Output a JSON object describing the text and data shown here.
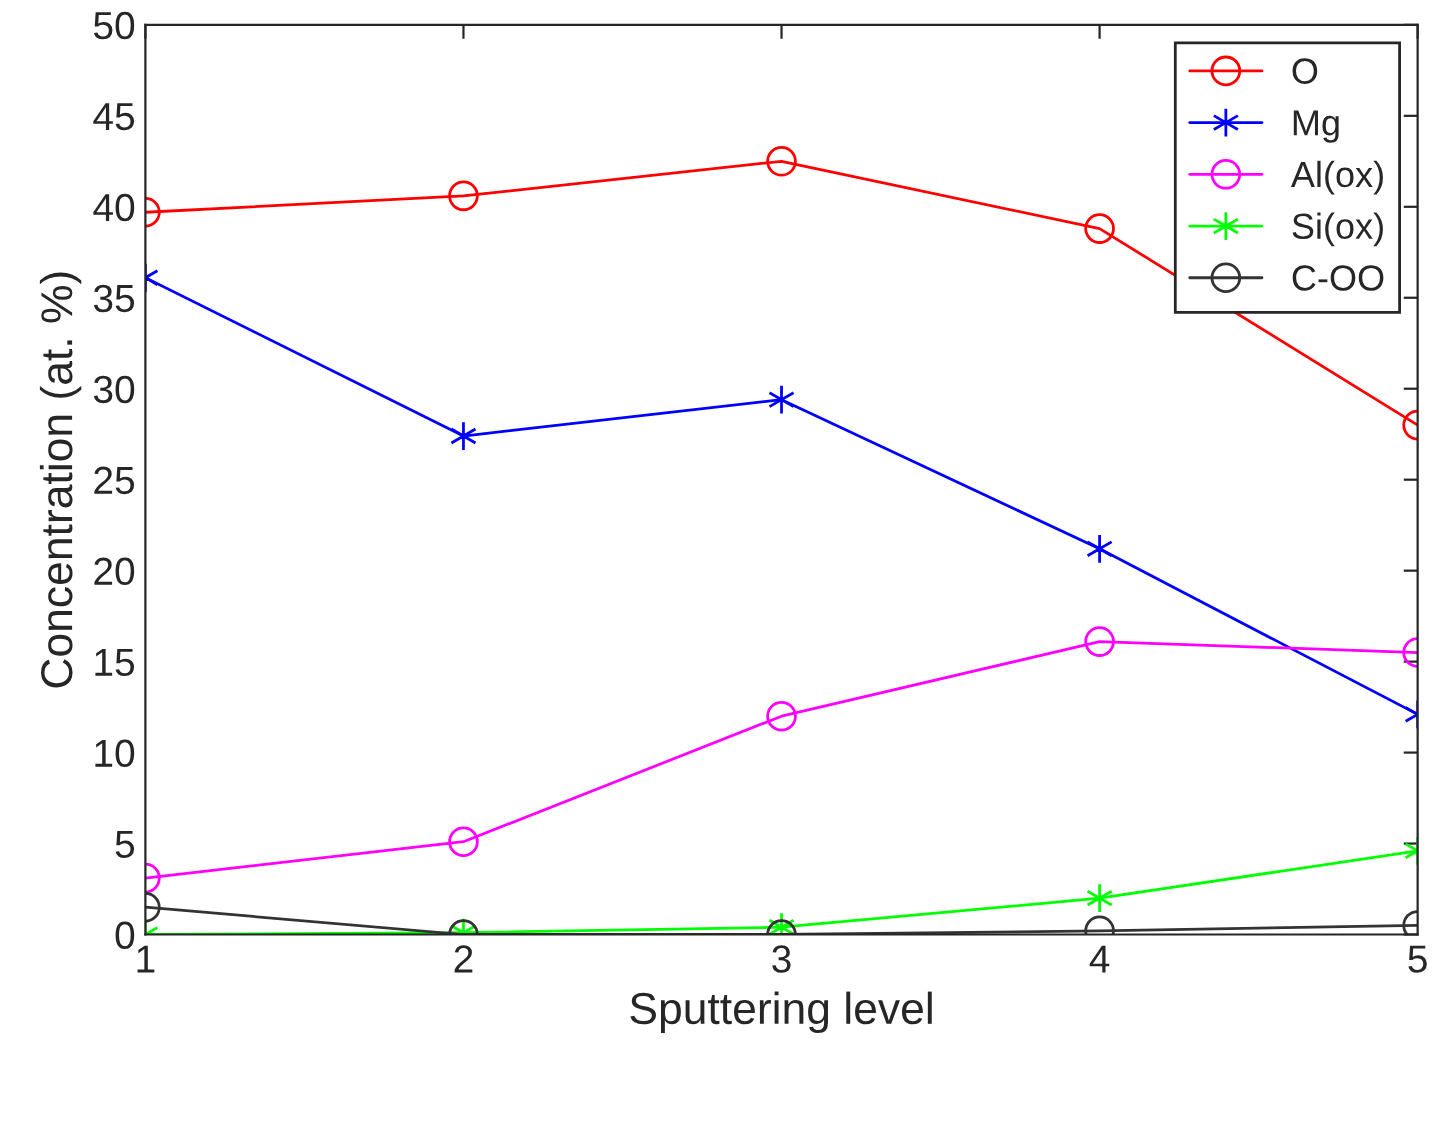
{
  "chart_data": {
    "type": "line",
    "xlabel": "Sputtering level",
    "ylabel": "Concentration (at. %)",
    "x": [
      1,
      2,
      3,
      4,
      5
    ],
    "series": [
      {
        "name": "O",
        "color": "#ff0000",
        "marker": "circle",
        "values": [
          39.7,
          40.6,
          42.5,
          38.8,
          28.0
        ]
      },
      {
        "name": "Mg",
        "color": "#0000ff",
        "marker": "cross",
        "values": [
          36.1,
          27.4,
          29.4,
          21.2,
          12.1
        ]
      },
      {
        "name": "Al(ox)",
        "color": "#ff00ff",
        "marker": "circle",
        "values": [
          3.1,
          5.1,
          12.0,
          16.1,
          15.5
        ]
      },
      {
        "name": "Si(ox)",
        "color": "#00ff00",
        "marker": "cross",
        "values": [
          0.0,
          0.1,
          0.4,
          2.0,
          4.6
        ]
      },
      {
        "name": "C-OO",
        "color": "#333333",
        "marker": "circle",
        "values": [
          1.5,
          0.0,
          0.0,
          0.2,
          0.5
        ]
      }
    ],
    "xlim": [
      1,
      5
    ],
    "xticks": [
      1,
      2,
      3,
      4,
      5
    ],
    "ylim": [
      0,
      50
    ],
    "yticks": [
      0,
      5,
      10,
      15,
      20,
      25,
      30,
      35,
      40,
      45,
      50
    ],
    "grid": false,
    "legend": "top right",
    "line_style": "solid"
  }
}
